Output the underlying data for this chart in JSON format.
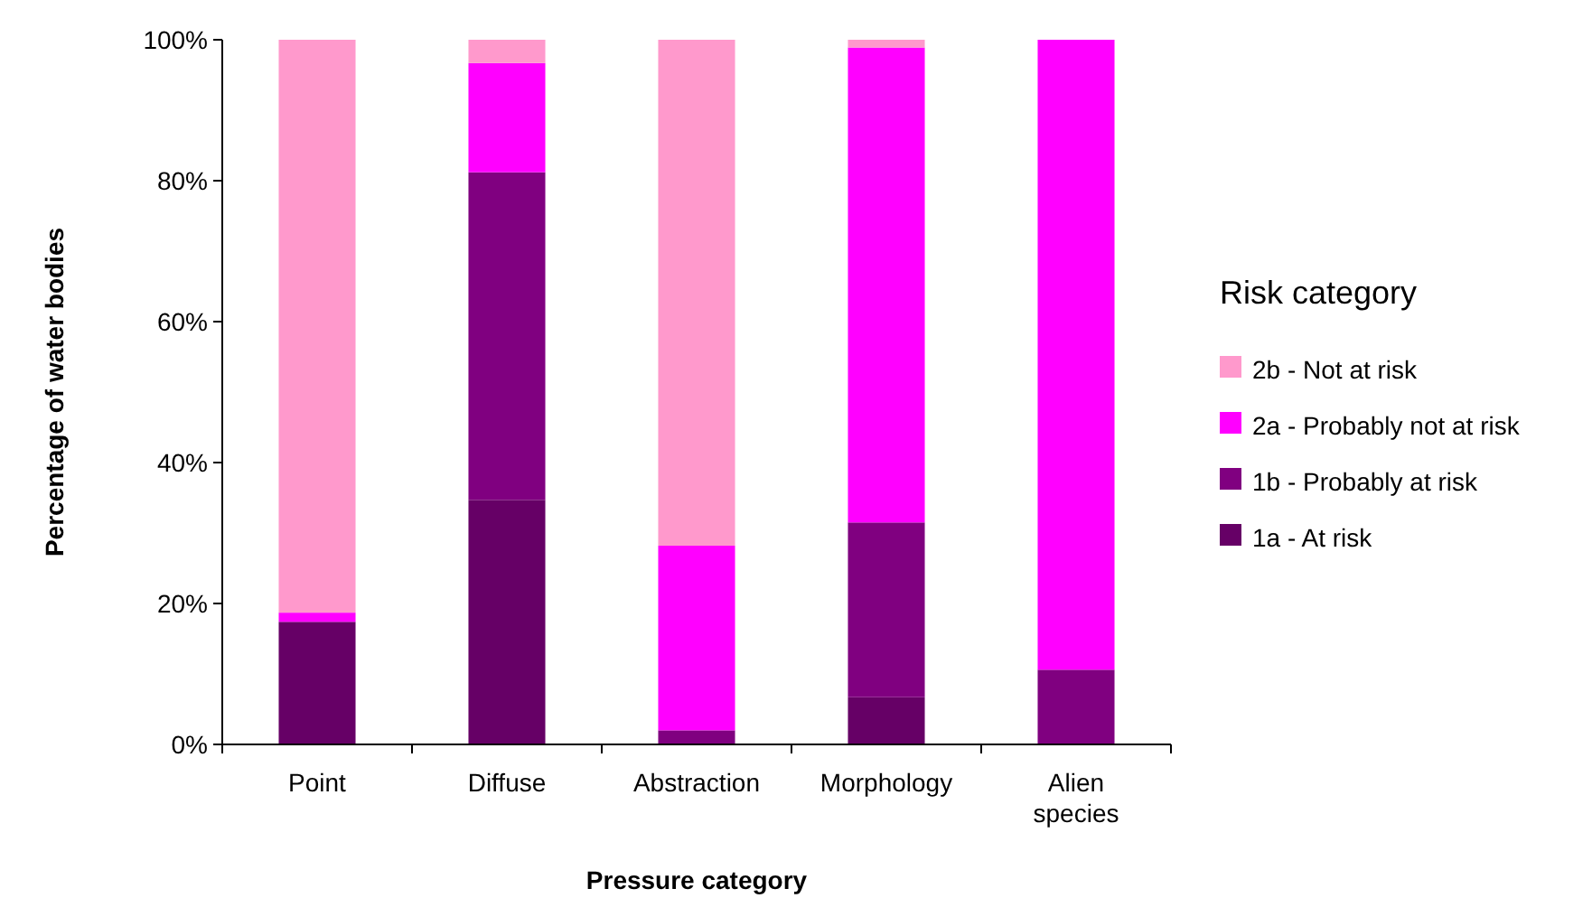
{
  "chart_data": {
    "type": "bar",
    "stacked": true,
    "xlabel": "Pressure category",
    "ylabel": "Percentage of water bodies",
    "legend_title": "Risk category",
    "legend": "right",
    "grid": false,
    "categories": [
      "Point",
      "Diffuse",
      "Abstraction",
      "Morphology",
      "Alien species"
    ],
    "ylim": [
      0,
      100
    ],
    "yticks": [
      {
        "value": 0,
        "label": "0%"
      },
      {
        "value": 20,
        "label": "20%"
      },
      {
        "value": 40,
        "label": "40%"
      },
      {
        "value": 60,
        "label": "60%"
      },
      {
        "value": 80,
        "label": "80%"
      },
      {
        "value": 100,
        "label": "100%"
      }
    ],
    "series": [
      {
        "name": "1a - At risk",
        "color": "#660066",
        "values": [
          17.4,
          34.7,
          0,
          6.7,
          0
        ]
      },
      {
        "name": "1b - Probably at risk",
        "color": "#800080",
        "values": [
          0,
          46.5,
          2.0,
          24.8,
          10.6
        ]
      },
      {
        "name": "2a - Probably not at risk",
        "color": "#ff00ff",
        "values": [
          1.3,
          15.5,
          26.2,
          67.4,
          89.4
        ]
      },
      {
        "name": "2b - Not at risk",
        "color": "#ff99cc",
        "values": [
          81.3,
          3.3,
          71.8,
          1.1,
          0
        ]
      }
    ]
  }
}
